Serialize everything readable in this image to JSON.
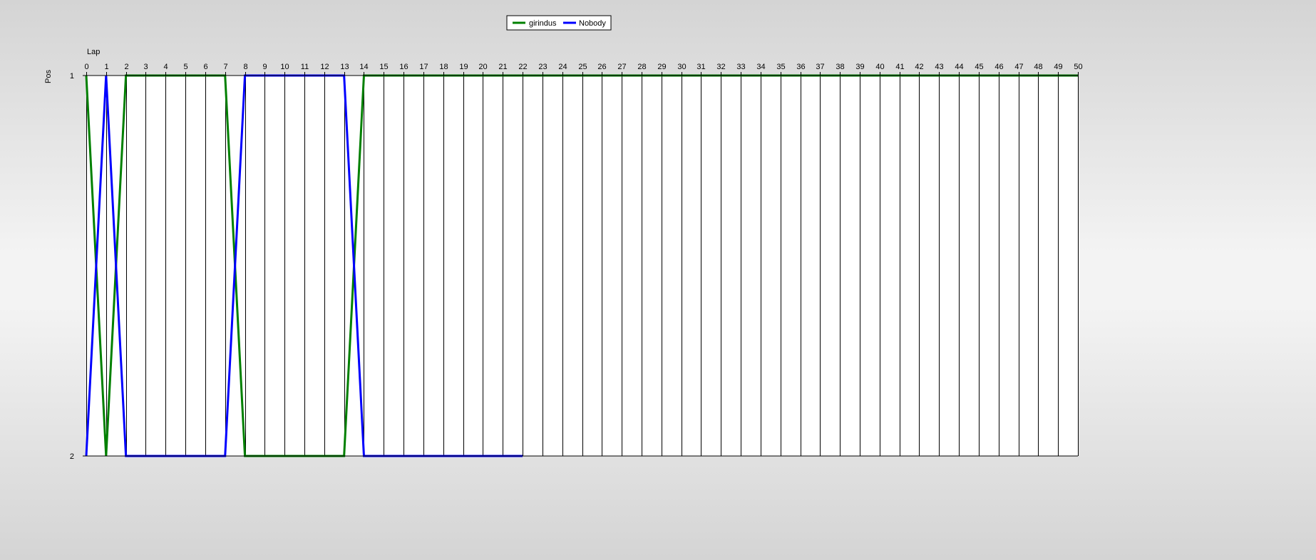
{
  "chart_data": {
    "type": "line",
    "xlabel": "Lap",
    "ylabel": "Pos",
    "xlim": [
      0,
      50
    ],
    "ylim": [
      1,
      2
    ],
    "y_inverted": true,
    "x_ticks": [
      0,
      1,
      2,
      3,
      4,
      5,
      6,
      7,
      8,
      9,
      10,
      11,
      12,
      13,
      14,
      15,
      16,
      17,
      18,
      19,
      20,
      21,
      22,
      23,
      24,
      25,
      26,
      27,
      28,
      29,
      30,
      31,
      32,
      33,
      34,
      35,
      36,
      37,
      38,
      39,
      40,
      41,
      42,
      43,
      44,
      45,
      46,
      47,
      48,
      49,
      50
    ],
    "y_ticks": [
      1,
      2
    ],
    "grid": "vertical",
    "legend_position": "top-center",
    "series": [
      {
        "name": "girindus",
        "color": "#008000",
        "x": [
          0,
          1,
          2,
          3,
          4,
          5,
          6,
          7,
          8,
          9,
          10,
          11,
          12,
          13,
          14,
          15,
          16,
          17,
          18,
          19,
          20,
          21,
          22,
          23,
          24,
          25,
          26,
          27,
          28,
          29,
          30,
          31,
          32,
          33,
          34,
          35,
          36,
          37,
          38,
          39,
          40,
          41,
          42,
          43,
          44,
          45,
          46,
          47,
          48,
          49,
          50
        ],
        "y": [
          1,
          2,
          1,
          1,
          1,
          1,
          1,
          1,
          2,
          2,
          2,
          2,
          2,
          2,
          1,
          1,
          1,
          1,
          1,
          1,
          1,
          1,
          1,
          1,
          1,
          1,
          1,
          1,
          1,
          1,
          1,
          1,
          1,
          1,
          1,
          1,
          1,
          1,
          1,
          1,
          1,
          1,
          1,
          1,
          1,
          1,
          1,
          1,
          1,
          1,
          1
        ]
      },
      {
        "name": "Nobody",
        "color": "#0000ff",
        "x": [
          0,
          1,
          2,
          3,
          4,
          5,
          6,
          7,
          8,
          9,
          10,
          11,
          12,
          13,
          14,
          15,
          16,
          17,
          18,
          19,
          20,
          21,
          22
        ],
        "y": [
          2,
          1,
          2,
          2,
          2,
          2,
          2,
          2,
          1,
          1,
          1,
          1,
          1,
          1,
          2,
          2,
          2,
          2,
          2,
          2,
          2,
          2,
          2
        ]
      }
    ]
  }
}
